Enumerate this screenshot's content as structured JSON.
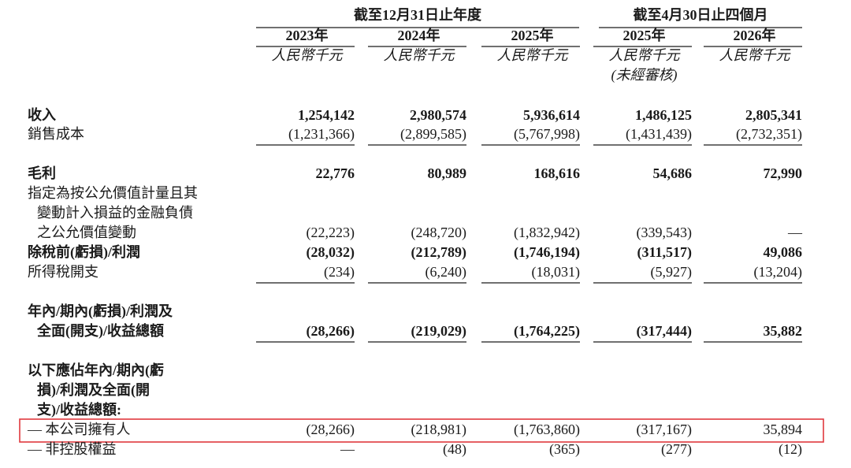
{
  "header": {
    "groups": [
      "截至12月31日止年度",
      "截至4月30日止四個月"
    ],
    "columns": [
      {
        "year": "2023年",
        "unit": "人民幣千元"
      },
      {
        "year": "2024年",
        "unit": "人民幣千元"
      },
      {
        "year": "2025年",
        "unit": "人民幣千元"
      },
      {
        "year": "2025年",
        "unit": "人民幣千元",
        "note": "(未經審核)"
      },
      {
        "year": "2026年",
        "unit": "人民幣千元"
      }
    ]
  },
  "rows": [
    {
      "label": [
        "收入"
      ],
      "bold": true,
      "values": [
        "1,254,142",
        "2,980,574",
        "5,936,614",
        "1,486,125",
        "2,805,341"
      ]
    },
    {
      "label": [
        "銷售成本"
      ],
      "values": [
        "(1,231,366)",
        "(2,899,585)",
        "(5,767,998)",
        "(1,431,439)",
        "(2,732,351)"
      ]
    },
    {
      "label": [
        "毛利"
      ],
      "bold": true,
      "values": [
        "22,776",
        "80,989",
        "168,616",
        "54,686",
        "72,990"
      ]
    },
    {
      "label": [
        "指定為按公允價值計量且其",
        "變動計入損益的金融負債",
        "之公允價值變動"
      ],
      "values": [
        "(22,223)",
        "(248,720)",
        "(1,832,942)",
        "(339,543)",
        "—"
      ]
    },
    {
      "label": [
        "除稅前(虧損)/利潤"
      ],
      "bold": true,
      "values": [
        "(28,032)",
        "(212,789)",
        "(1,746,194)",
        "(311,517)",
        "49,086"
      ]
    },
    {
      "label": [
        "所得稅開支"
      ],
      "values": [
        "(234)",
        "(6,240)",
        "(18,031)",
        "(5,927)",
        "(13,204)"
      ]
    },
    {
      "label": [
        "年內/期內(虧損)/利潤及",
        "全面(開支)/收益總額"
      ],
      "bold": true,
      "values": [
        "(28,266)",
        "(219,029)",
        "(1,764,225)",
        "(317,444)",
        "35,882"
      ]
    },
    {
      "label": [
        "以下應佔年內/期內(虧",
        "損)/利潤及全面(開",
        "支)/收益總額:"
      ],
      "bold": true
    },
    {
      "label": [
        "— 本公司擁有人"
      ],
      "values": [
        "(28,266)",
        "(218,981)",
        "(1,763,860)",
        "(317,167)",
        "35,894"
      ]
    },
    {
      "label": [
        "— 非控股權益"
      ],
      "values": [
        "—",
        "(48)",
        "(365)",
        "(277)",
        "(12)"
      ]
    }
  ]
}
